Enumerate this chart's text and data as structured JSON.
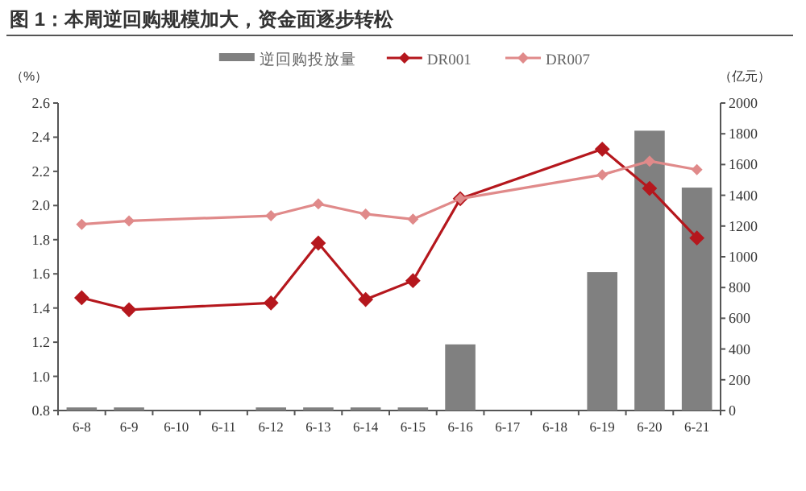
{
  "chart_data": {
    "type": "bar",
    "title": "图 1：本周逆回购规模加大，资金面逐步转松",
    "ylabel": "（%）",
    "y2label": "（亿元）",
    "categories": [
      "6-8",
      "6-9",
      "6-10",
      "6-11",
      "6-12",
      "6-13",
      "6-14",
      "6-15",
      "6-16",
      "6-17",
      "6-18",
      "6-19",
      "6-20",
      "6-21"
    ],
    "series": [
      {
        "name": "逆回购投放量",
        "axis": "y2",
        "color": "#808080",
        "values": [
          20,
          20,
          null,
          null,
          20,
          20,
          20,
          20,
          430,
          null,
          null,
          900,
          1820,
          1450
        ]
      },
      {
        "name": "DR001",
        "type": "line",
        "color": "#b5171d",
        "marker": "diamond",
        "values": [
          1.46,
          1.39,
          null,
          null,
          1.43,
          1.78,
          1.45,
          1.56,
          2.04,
          null,
          null,
          2.33,
          2.1,
          1.81
        ]
      },
      {
        "name": "DR007",
        "type": "line",
        "color": "#e08a8a",
        "marker": "diamond",
        "values": [
          1.89,
          1.91,
          null,
          null,
          1.94,
          2.01,
          1.95,
          1.92,
          2.04,
          null,
          null,
          2.18,
          2.26,
          2.21
        ]
      }
    ],
    "ylim": [
      0.8,
      2.6
    ],
    "yticks": [
      {
        "value": 0.8,
        "label": "0.8"
      },
      {
        "value": 1.0,
        "label": "1.0"
      },
      {
        "value": 1.2,
        "label": "1.2"
      },
      {
        "value": 1.4,
        "label": "1.4"
      },
      {
        "value": 1.6,
        "label": "1.6"
      },
      {
        "value": 1.8,
        "label": "1.8"
      },
      {
        "value": 2.0,
        "label": "2.0"
      },
      {
        "value": 2.2,
        "label": "2.2"
      },
      {
        "value": 2.4,
        "label": "2.4"
      },
      {
        "value": 2.6,
        "label": "2.6"
      }
    ],
    "y2lim": [
      0,
      2000
    ],
    "y2ticks": [
      0,
      200,
      400,
      600,
      800,
      1000,
      1200,
      1400,
      1600,
      1800,
      2000
    ],
    "grid": false,
    "legend": "top"
  }
}
